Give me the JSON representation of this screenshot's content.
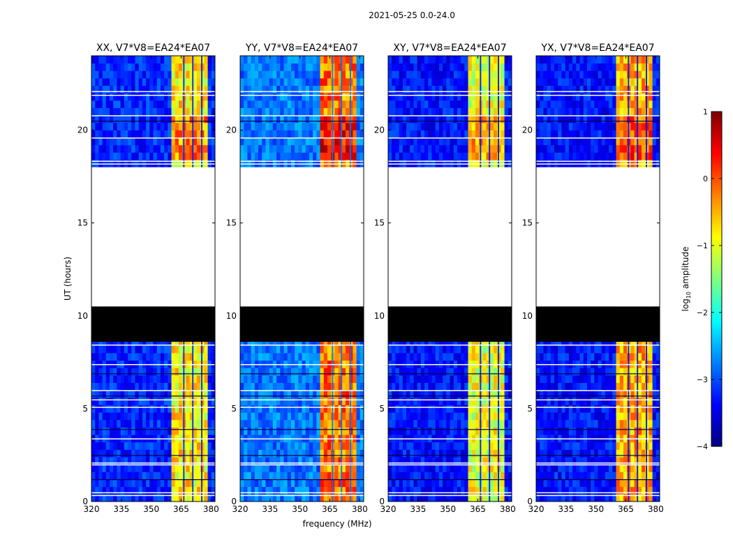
{
  "figure_title": "2021-05-25 0.0-24.0",
  "colors": {
    "colormap": [
      "#00007f",
      "#0000ff",
      "#0080ff",
      "#00ffff",
      "#80ff80",
      "#ffff00",
      "#ff8000",
      "#ff0000",
      "#7f0000"
    ],
    "flagged": "#000000",
    "missing": "#ffffff"
  },
  "chart_data": [
    {
      "type": "heatmap",
      "title": "XX, V7*V8=EA24*EA07",
      "xlabel": "",
      "ylabel": "UT (hours)",
      "xlim": [
        320,
        382
      ],
      "ylim": [
        0,
        24
      ],
      "xticks": [
        "320",
        "335",
        "350",
        "365",
        "380"
      ],
      "yticks": [
        "0",
        "5",
        "10",
        "15",
        "20"
      ],
      "value": "log10 amplitude",
      "bright_band_mhz": [
        360,
        378
      ],
      "background_level": -3.2,
      "band_level": -0.8,
      "no_data_hours": [
        10.5,
        18.0
      ],
      "flagged_hours": [
        8.6,
        10.5
      ]
    },
    {
      "type": "heatmap",
      "title": "YY, V7*V8=EA24*EA07",
      "xlabel": "frequency (MHz)",
      "ylabel": "",
      "xlim": [
        320,
        382
      ],
      "ylim": [
        0,
        24
      ],
      "xticks": [
        "320",
        "335",
        "350",
        "365",
        "380"
      ],
      "yticks": [
        "0",
        "5",
        "10",
        "15",
        "20"
      ],
      "value": "log10 amplitude",
      "bright_band_mhz": [
        360,
        378
      ],
      "background_level": -2.8,
      "band_level": -0.2,
      "no_data_hours": [
        10.5,
        18.0
      ],
      "flagged_hours": [
        8.6,
        10.5
      ]
    },
    {
      "type": "heatmap",
      "title": "XY, V7*V8=EA24*EA07",
      "xlabel": "",
      "ylabel": "",
      "xlim": [
        320,
        382
      ],
      "ylim": [
        0,
        24
      ],
      "xticks": [
        "320",
        "335",
        "350",
        "365",
        "380"
      ],
      "yticks": [
        "0",
        "5",
        "10",
        "15",
        "20"
      ],
      "value": "log10 amplitude",
      "bright_band_mhz": [
        360,
        378
      ],
      "background_level": -3.3,
      "band_level": -1.0,
      "no_data_hours": [
        10.5,
        18.0
      ],
      "flagged_hours": [
        8.6,
        10.5
      ]
    },
    {
      "type": "heatmap",
      "title": "YX, V7*V8=EA24*EA07",
      "xlabel": "",
      "ylabel": "",
      "xlim": [
        320,
        382
      ],
      "ylim": [
        0,
        24
      ],
      "xticks": [
        "320",
        "335",
        "350",
        "365",
        "380"
      ],
      "yticks": [
        "0",
        "5",
        "10",
        "15",
        "20"
      ],
      "value": "log10 amplitude",
      "bright_band_mhz": [
        360,
        378
      ],
      "background_level": -3.3,
      "band_level": -0.5,
      "no_data_hours": [
        10.5,
        18.0
      ],
      "flagged_hours": [
        8.6,
        10.5
      ]
    }
  ],
  "colorbar": {
    "label": "log",
    "label_sub": "10",
    "label_tail": " amplitude",
    "range": [
      -4,
      1
    ],
    "ticks": [
      "−4",
      "−3",
      "−2",
      "−1",
      "0",
      "1"
    ]
  }
}
